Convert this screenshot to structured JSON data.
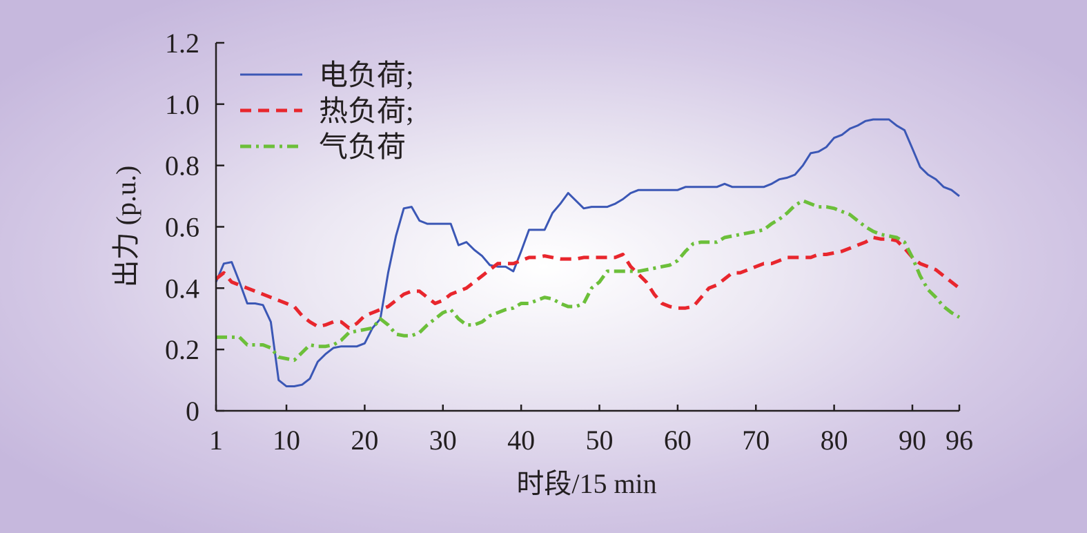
{
  "chart_data": {
    "type": "line",
    "xlabel": "时段/15 min",
    "ylabel": "出力 (p.u.)",
    "xlim": [
      1,
      96
    ],
    "ylim": [
      0,
      1.2
    ],
    "x_ticks": [
      1,
      10,
      20,
      30,
      40,
      50,
      60,
      70,
      80,
      90,
      96
    ],
    "y_ticks": [
      0,
      0.2,
      0.4,
      0.6,
      0.8,
      1.0,
      1.2
    ],
    "y_tick_labels": [
      "0",
      "0.2",
      "0.4",
      "0.6",
      "0.8",
      "1.0",
      "1.2"
    ],
    "grid": false,
    "legend_position": "top-left",
    "series": [
      {
        "name": "电负荷;",
        "color": "#3b57b5",
        "style": "solid",
        "x": [
          1,
          2,
          3,
          4,
          5,
          6,
          7,
          8,
          9,
          10,
          11,
          12,
          13,
          14,
          15,
          16,
          17,
          18,
          19,
          20,
          21,
          22,
          23,
          24,
          25,
          26,
          27,
          28,
          29,
          30,
          31,
          32,
          33,
          34,
          35,
          36,
          37,
          38,
          39,
          40,
          41,
          42,
          43,
          44,
          45,
          46,
          47,
          48,
          49,
          50,
          51,
          52,
          53,
          54,
          55,
          56,
          57,
          58,
          59,
          60,
          61,
          62,
          63,
          64,
          65,
          66,
          67,
          68,
          69,
          70,
          71,
          72,
          73,
          74,
          75,
          76,
          77,
          78,
          79,
          80,
          81,
          82,
          83,
          84,
          85,
          86,
          87,
          88,
          89,
          90,
          91,
          92,
          93,
          94,
          95,
          96
        ],
        "y": [
          0.42,
          0.48,
          0.485,
          0.42,
          0.35,
          0.35,
          0.345,
          0.29,
          0.1,
          0.08,
          0.08,
          0.085,
          0.105,
          0.16,
          0.185,
          0.205,
          0.21,
          0.21,
          0.21,
          0.22,
          0.27,
          0.3,
          0.45,
          0.57,
          0.66,
          0.665,
          0.62,
          0.61,
          0.61,
          0.61,
          0.61,
          0.54,
          0.55,
          0.525,
          0.505,
          0.475,
          0.47,
          0.47,
          0.455,
          0.52,
          0.59,
          0.59,
          0.59,
          0.645,
          0.675,
          0.71,
          0.685,
          0.66,
          0.665,
          0.665,
          0.665,
          0.675,
          0.69,
          0.71,
          0.72,
          0.72,
          0.72,
          0.72,
          0.72,
          0.72,
          0.73,
          0.73,
          0.73,
          0.73,
          0.73,
          0.74,
          0.73,
          0.73,
          0.73,
          0.73,
          0.73,
          0.74,
          0.755,
          0.76,
          0.77,
          0.8,
          0.84,
          0.845,
          0.86,
          0.89,
          0.9,
          0.92,
          0.93,
          0.945,
          0.95,
          0.95,
          0.95,
          0.93,
          0.915,
          0.855,
          0.795,
          0.77,
          0.755,
          0.73,
          0.72,
          0.7
        ]
      },
      {
        "name": "热负荷;",
        "color": "#e8262d",
        "style": "dashed",
        "x": [
          1,
          2,
          3,
          4,
          5,
          6,
          7,
          8,
          9,
          10,
          11,
          12,
          13,
          14,
          15,
          16,
          17,
          18,
          19,
          20,
          21,
          22,
          23,
          24,
          25,
          26,
          27,
          28,
          29,
          30,
          31,
          32,
          33,
          34,
          35,
          36,
          37,
          38,
          39,
          40,
          41,
          42,
          43,
          44,
          45,
          46,
          47,
          48,
          49,
          50,
          51,
          52,
          53,
          54,
          55,
          56,
          57,
          58,
          59,
          60,
          61,
          62,
          63,
          64,
          65,
          66,
          67,
          68,
          69,
          70,
          71,
          72,
          73,
          74,
          75,
          76,
          77,
          78,
          79,
          80,
          81,
          82,
          83,
          84,
          85,
          86,
          87,
          88,
          89,
          90,
          91,
          92,
          93,
          94,
          95,
          96
        ],
        "y": [
          0.43,
          0.45,
          0.42,
          0.41,
          0.4,
          0.39,
          0.38,
          0.37,
          0.36,
          0.35,
          0.34,
          0.31,
          0.29,
          0.275,
          0.28,
          0.29,
          0.29,
          0.27,
          0.285,
          0.31,
          0.32,
          0.33,
          0.34,
          0.36,
          0.38,
          0.39,
          0.39,
          0.37,
          0.35,
          0.36,
          0.38,
          0.39,
          0.4,
          0.42,
          0.44,
          0.46,
          0.48,
          0.48,
          0.48,
          0.49,
          0.5,
          0.5,
          0.505,
          0.5,
          0.495,
          0.495,
          0.495,
          0.5,
          0.5,
          0.5,
          0.5,
          0.5,
          0.51,
          0.47,
          0.445,
          0.42,
          0.38,
          0.35,
          0.34,
          0.335,
          0.335,
          0.34,
          0.37,
          0.4,
          0.41,
          0.43,
          0.45,
          0.45,
          0.46,
          0.47,
          0.48,
          0.48,
          0.49,
          0.5,
          0.5,
          0.5,
          0.5,
          0.51,
          0.51,
          0.515,
          0.52,
          0.53,
          0.54,
          0.55,
          0.565,
          0.56,
          0.56,
          0.555,
          0.53,
          0.5,
          0.48,
          0.47,
          0.46,
          0.44,
          0.42,
          0.4
        ]
      },
      {
        "name": "气负荷",
        "color": "#6cbf3a",
        "style": "dashdot",
        "x": [
          1,
          2,
          3,
          4,
          5,
          6,
          7,
          8,
          9,
          10,
          11,
          12,
          13,
          14,
          15,
          16,
          17,
          18,
          19,
          20,
          21,
          22,
          23,
          24,
          25,
          26,
          27,
          28,
          29,
          30,
          31,
          32,
          33,
          34,
          35,
          36,
          37,
          38,
          39,
          40,
          41,
          42,
          43,
          44,
          45,
          46,
          47,
          48,
          49,
          50,
          51,
          52,
          53,
          54,
          55,
          56,
          57,
          58,
          59,
          60,
          61,
          62,
          63,
          64,
          65,
          66,
          67,
          68,
          69,
          70,
          71,
          72,
          73,
          74,
          75,
          76,
          77,
          78,
          79,
          80,
          81,
          82,
          83,
          84,
          85,
          86,
          87,
          88,
          89,
          90,
          91,
          92,
          93,
          94,
          95,
          96
        ],
        "y": [
          0.24,
          0.24,
          0.24,
          0.24,
          0.215,
          0.215,
          0.215,
          0.205,
          0.175,
          0.17,
          0.165,
          0.19,
          0.215,
          0.21,
          0.21,
          0.215,
          0.23,
          0.255,
          0.26,
          0.265,
          0.27,
          0.3,
          0.28,
          0.25,
          0.245,
          0.245,
          0.255,
          0.28,
          0.3,
          0.32,
          0.33,
          0.3,
          0.28,
          0.28,
          0.29,
          0.31,
          0.32,
          0.33,
          0.335,
          0.35,
          0.35,
          0.36,
          0.37,
          0.365,
          0.35,
          0.34,
          0.34,
          0.35,
          0.4,
          0.42,
          0.455,
          0.455,
          0.455,
          0.455,
          0.455,
          0.46,
          0.465,
          0.47,
          0.475,
          0.49,
          0.52,
          0.545,
          0.55,
          0.55,
          0.55,
          0.565,
          0.57,
          0.575,
          0.58,
          0.585,
          0.59,
          0.61,
          0.625,
          0.645,
          0.67,
          0.685,
          0.675,
          0.665,
          0.665,
          0.66,
          0.65,
          0.64,
          0.62,
          0.6,
          0.585,
          0.575,
          0.57,
          0.565,
          0.55,
          0.5,
          0.44,
          0.395,
          0.37,
          0.34,
          0.32,
          0.305
        ]
      }
    ]
  }
}
